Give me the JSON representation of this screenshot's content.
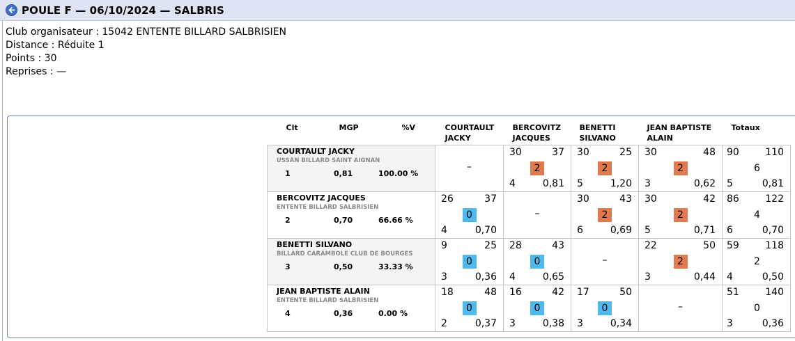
{
  "header": {
    "title": "POULE F — 06/10/2024 — SALBRIS"
  },
  "info": {
    "club": "Club organisateur : 15042 ENTENTE BILLARD SALBRISIEN",
    "distance": "Distance : Réduite 1",
    "points": "Points : 30",
    "reprises": "Reprises : —"
  },
  "columns": {
    "clt": "Clt",
    "mgp": "MGP",
    "pv": "%V",
    "opponents": [
      [
        "COURTAULT",
        "JACKY"
      ],
      [
        "BERCOVITZ",
        "JACQUES"
      ],
      [
        "BENETTI",
        "SILVANO"
      ],
      [
        "JEAN BAPTISTE",
        "ALAIN"
      ]
    ],
    "totals": "Totaux"
  },
  "colors": {
    "win": "#e07a50",
    "loss": "#4fb8ec"
  },
  "rows": [
    {
      "name": "COURTAULT JACKY",
      "club": "USSAN BILLARD SAINT AIGNAN",
      "clt": "1",
      "mgp": "0,81",
      "pv": "100.00 %",
      "cells": [
        null,
        {
          "pts": "30",
          "dist": "37",
          "score": "2",
          "result": "win",
          "rep": "4",
          "avg": "0,81"
        },
        {
          "pts": "30",
          "dist": "25",
          "score": "2",
          "result": "win",
          "rep": "5",
          "avg": "1,20"
        },
        {
          "pts": "30",
          "dist": "48",
          "score": "2",
          "result": "win",
          "rep": "3",
          "avg": "0,62"
        }
      ],
      "totals": {
        "pts": "90",
        "dist": "110",
        "score": "6",
        "rep": "5",
        "avg": "0,81"
      }
    },
    {
      "name": "BERCOVITZ JACQUES",
      "club": "ENTENTE BILLARD SALBRISIEN",
      "clt": "2",
      "mgp": "0,70",
      "pv": "66.66 %",
      "cells": [
        {
          "pts": "26",
          "dist": "37",
          "score": "0",
          "result": "loss",
          "rep": "4",
          "avg": "0,70"
        },
        null,
        {
          "pts": "30",
          "dist": "43",
          "score": "2",
          "result": "win",
          "rep": "6",
          "avg": "0,69"
        },
        {
          "pts": "30",
          "dist": "42",
          "score": "2",
          "result": "win",
          "rep": "5",
          "avg": "0,71"
        }
      ],
      "totals": {
        "pts": "86",
        "dist": "122",
        "score": "4",
        "rep": "6",
        "avg": "0,70"
      }
    },
    {
      "name": "BENETTI SILVANO",
      "club": "BILLARD CARAMBOLE CLUB DE BOURGES",
      "clt": "3",
      "mgp": "0,50",
      "pv": "33.33 %",
      "cells": [
        {
          "pts": "9",
          "dist": "25",
          "score": "0",
          "result": "loss",
          "rep": "3",
          "avg": "0,36"
        },
        {
          "pts": "28",
          "dist": "43",
          "score": "0",
          "result": "loss",
          "rep": "4",
          "avg": "0,65"
        },
        null,
        {
          "pts": "22",
          "dist": "50",
          "score": "2",
          "result": "win",
          "rep": "3",
          "avg": "0,44"
        }
      ],
      "totals": {
        "pts": "59",
        "dist": "118",
        "score": "2",
        "rep": "4",
        "avg": "0,50"
      }
    },
    {
      "name": "JEAN BAPTISTE ALAIN",
      "club": "ENTENTE BILLARD SALBRISIEN",
      "clt": "4",
      "mgp": "0,36",
      "pv": "0.00 %",
      "cells": [
        {
          "pts": "18",
          "dist": "48",
          "score": "0",
          "result": "loss",
          "rep": "2",
          "avg": "0,37"
        },
        {
          "pts": "16",
          "dist": "42",
          "score": "0",
          "result": "loss",
          "rep": "3",
          "avg": "0,38"
        },
        {
          "pts": "17",
          "dist": "50",
          "score": "0",
          "result": "loss",
          "rep": "3",
          "avg": "0,34"
        },
        null
      ],
      "totals": {
        "pts": "51",
        "dist": "140",
        "score": "0",
        "rep": "3",
        "avg": "0,36"
      }
    }
  ],
  "empty_cell": "–"
}
